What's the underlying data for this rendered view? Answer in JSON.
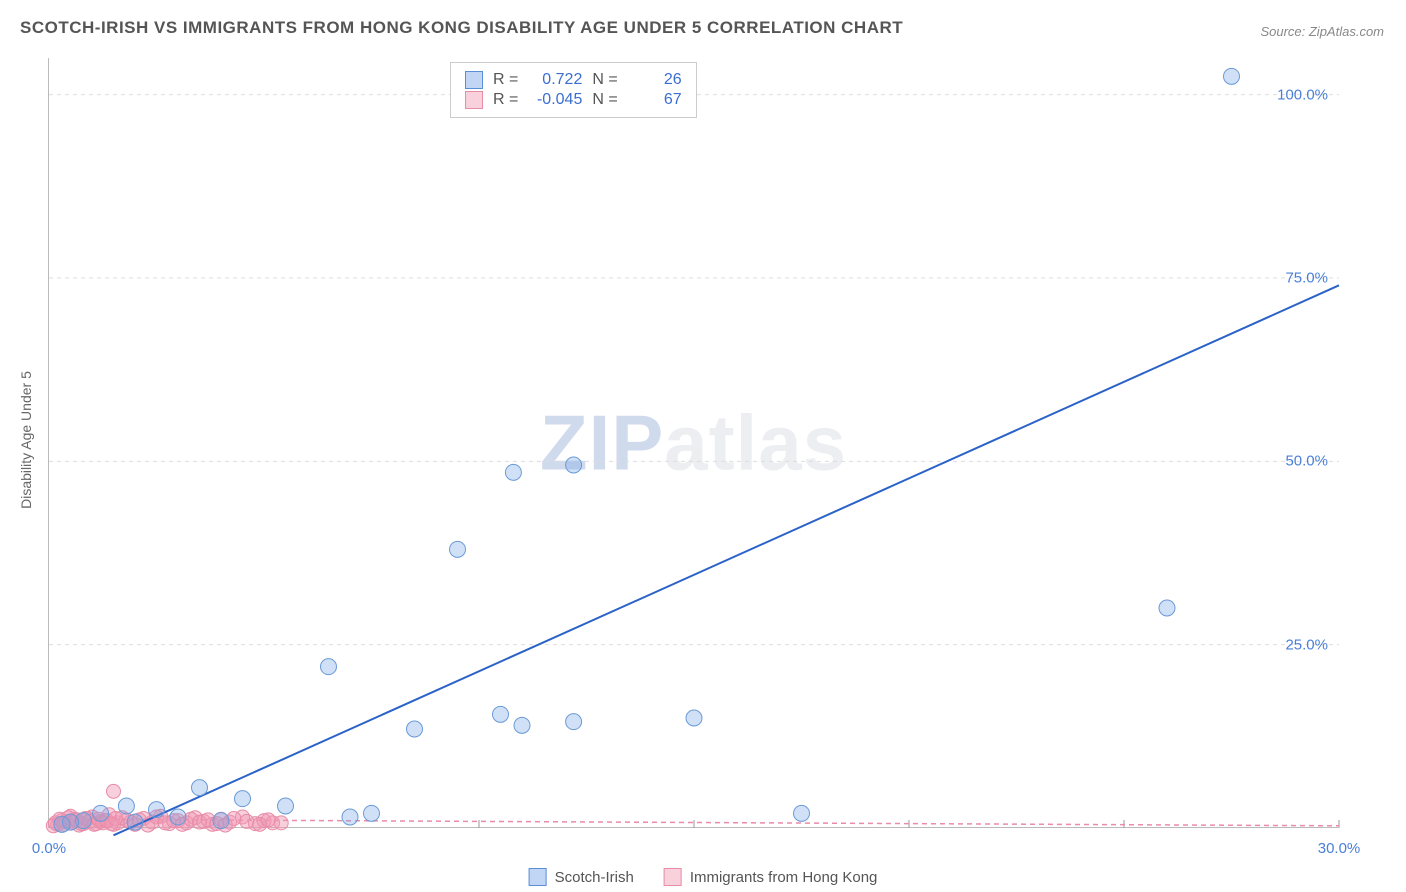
{
  "title": "SCOTCH-IRISH VS IMMIGRANTS FROM HONG KONG DISABILITY AGE UNDER 5 CORRELATION CHART",
  "source": "Source: ZipAtlas.com",
  "y_axis_title": "Disability Age Under 5",
  "watermark_a": "ZIP",
  "watermark_b": "atlas",
  "chart": {
    "type": "scatter",
    "xlim": [
      0,
      30
    ],
    "ylim": [
      0,
      105
    ],
    "x_ticks": [
      0,
      5,
      10,
      15,
      20,
      25,
      30
    ],
    "y_ticks": [
      25,
      50,
      75,
      100
    ],
    "x_labels": {
      "0": "0.0%",
      "30": "30.0%"
    },
    "y_labels": {
      "25": "25.0%",
      "50": "50.0%",
      "75": "75.0%",
      "100": "100.0%"
    },
    "background_color": "#ffffff",
    "grid_color": "#dddddd",
    "axis_color": "#bbbbbb",
    "tick_label_color": "#4a7fd8",
    "series": [
      {
        "name": "Scotch-Irish",
        "color_fill": "rgba(120,165,230,0.35)",
        "color_stroke": "#6a9ad8",
        "marker_radius": 8,
        "R": "0.722",
        "N": "26",
        "trend": {
          "x1": 1.5,
          "y1": -1,
          "x2": 30,
          "y2": 74,
          "stroke": "#2a62c8",
          "width": 2
        },
        "points": [
          [
            27.5,
            102.5
          ],
          [
            26,
            30
          ],
          [
            12.2,
            49.5
          ],
          [
            10.8,
            48.5
          ],
          [
            9.5,
            38
          ],
          [
            6.5,
            22
          ],
          [
            10.5,
            15.5
          ],
          [
            11,
            14
          ],
          [
            12.2,
            14.5
          ],
          [
            15,
            15
          ],
          [
            8.5,
            13.5
          ],
          [
            17.5,
            2
          ],
          [
            7.5,
            2
          ],
          [
            7,
            1.5
          ],
          [
            3.5,
            5.5
          ],
          [
            4.5,
            4
          ],
          [
            5.5,
            3
          ],
          [
            2.5,
            2.5
          ],
          [
            1.8,
            3
          ],
          [
            1.2,
            2
          ],
          [
            0.8,
            1
          ],
          [
            0.5,
            0.8
          ],
          [
            0.3,
            0.5
          ],
          [
            2.0,
            0.8
          ],
          [
            3.0,
            1.5
          ],
          [
            4.0,
            1.0
          ]
        ]
      },
      {
        "name": "Immigrants from Hong Kong",
        "color_fill": "rgba(240,150,180,0.45)",
        "color_stroke": "#e88ca8",
        "marker_radius": 7,
        "R": "-0.045",
        "N": "67",
        "trend": {
          "x1": 0,
          "y1": 1.2,
          "x2": 30,
          "y2": 0.3,
          "stroke": "#e88ca8",
          "width": 1.5,
          "dash": "5,4"
        },
        "points": [
          [
            1.5,
            5
          ],
          [
            0.2,
            0.5
          ],
          [
            0.4,
            0.8
          ],
          [
            0.6,
            1.2
          ],
          [
            0.8,
            0.6
          ],
          [
            1.0,
            1.5
          ],
          [
            1.2,
            0.9
          ],
          [
            1.4,
            1.8
          ],
          [
            1.6,
            0.7
          ],
          [
            1.8,
            1.1
          ],
          [
            2.0,
            0.5
          ],
          [
            2.2,
            1.3
          ],
          [
            2.4,
            0.8
          ],
          [
            2.6,
            1.6
          ],
          [
            2.8,
            0.6
          ],
          [
            3.0,
            1.0
          ],
          [
            3.2,
            0.7
          ],
          [
            3.4,
            1.4
          ],
          [
            3.6,
            0.9
          ],
          [
            3.8,
            0.5
          ],
          [
            4.0,
            1.2
          ],
          [
            4.2,
            0.8
          ],
          [
            4.5,
            1.5
          ],
          [
            4.8,
            0.6
          ],
          [
            5.0,
            1.0
          ],
          [
            5.2,
            0.7
          ],
          [
            0.1,
            0.3
          ],
          [
            0.3,
            1.0
          ],
          [
            0.5,
            1.6
          ],
          [
            0.7,
            0.4
          ],
          [
            0.9,
            1.3
          ],
          [
            1.1,
            0.6
          ],
          [
            1.3,
            1.0
          ],
          [
            1.5,
            0.5
          ],
          [
            1.7,
            1.4
          ],
          [
            1.9,
            0.8
          ],
          [
            2.1,
            1.1
          ],
          [
            2.3,
            0.4
          ],
          [
            2.5,
            1.5
          ],
          [
            2.7,
            0.7
          ],
          [
            2.9,
            1.0
          ],
          [
            3.1,
            0.5
          ],
          [
            3.3,
            1.2
          ],
          [
            3.5,
            0.8
          ],
          [
            3.7,
            1.1
          ],
          [
            3.9,
            0.6
          ],
          [
            4.1,
            0.4
          ],
          [
            4.3,
            1.3
          ],
          [
            4.6,
            0.9
          ],
          [
            4.9,
            0.5
          ],
          [
            5.1,
            1.1
          ],
          [
            5.4,
            0.7
          ],
          [
            0.15,
            0.7
          ],
          [
            0.25,
            1.2
          ],
          [
            0.35,
            0.5
          ],
          [
            0.45,
            1.4
          ],
          [
            0.55,
            0.8
          ],
          [
            0.65,
            1.1
          ],
          [
            0.75,
            0.6
          ],
          [
            0.85,
            1.3
          ],
          [
            0.95,
            0.9
          ],
          [
            1.05,
            0.5
          ],
          [
            1.15,
            1.2
          ],
          [
            1.25,
            0.7
          ],
          [
            1.35,
            1.0
          ],
          [
            1.45,
            0.6
          ],
          [
            1.55,
            1.3
          ]
        ]
      }
    ]
  },
  "stats_box": {
    "r_label": "R =",
    "n_label": "N ="
  },
  "legend": {
    "series1": "Scotch-Irish",
    "series2": "Immigrants from Hong Kong"
  }
}
